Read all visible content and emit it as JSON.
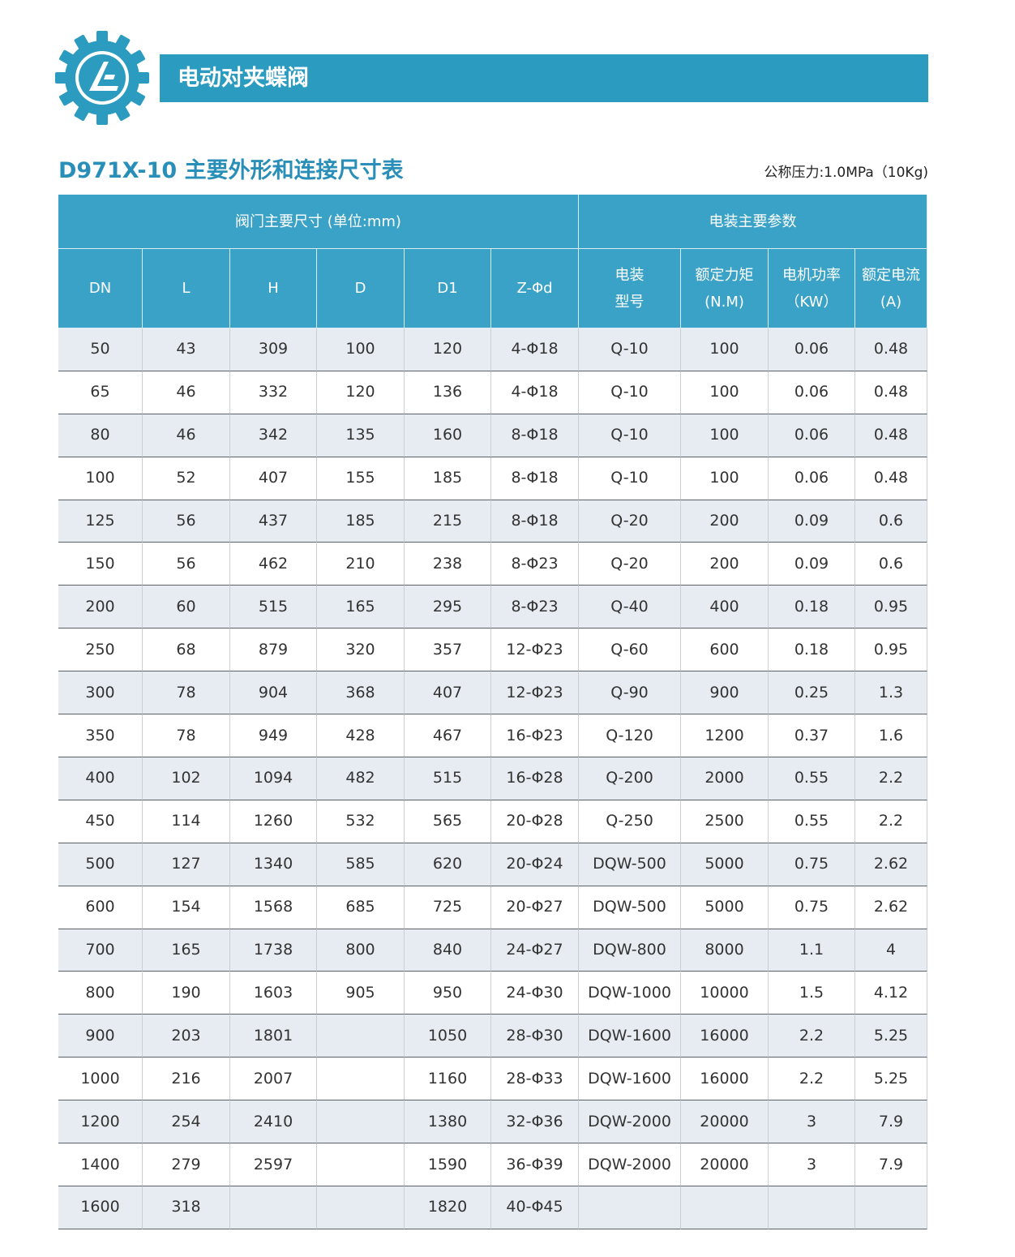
{
  "header": {
    "title": "电动对夹蝶阀"
  },
  "subheader": {
    "title": "D971X-10 主要外形和连接尺寸表",
    "note": "公称压力:1.0MPa（10Kg)"
  },
  "table": {
    "group_headers": [
      "阀门主要尺寸 (单位:mm)",
      "电装主要参数"
    ],
    "columns": [
      [
        "DN"
      ],
      [
        "L"
      ],
      [
        "H"
      ],
      [
        "D"
      ],
      [
        "D1"
      ],
      [
        "Z-Φd"
      ],
      [
        "电装",
        "型号"
      ],
      [
        "额定力矩",
        "(N.M)"
      ],
      [
        "电机功率",
        "（KW）"
      ],
      [
        "额定电流",
        "(A)"
      ]
    ],
    "rows": [
      [
        "50",
        "43",
        "309",
        "100",
        "120",
        "4-Φ18",
        "Q-10",
        "100",
        "0.06",
        "0.48"
      ],
      [
        "65",
        "46",
        "332",
        "120",
        "136",
        "4-Φ18",
        "Q-10",
        "100",
        "0.06",
        "0.48"
      ],
      [
        "80",
        "46",
        "342",
        "135",
        "160",
        "8-Φ18",
        "Q-10",
        "100",
        "0.06",
        "0.48"
      ],
      [
        "100",
        "52",
        "407",
        "155",
        "185",
        "8-Φ18",
        "Q-10",
        "100",
        "0.06",
        "0.48"
      ],
      [
        "125",
        "56",
        "437",
        "185",
        "215",
        "8-Φ18",
        "Q-20",
        "200",
        "0.09",
        "0.6"
      ],
      [
        "150",
        "56",
        "462",
        "210",
        "238",
        "8-Φ23",
        "Q-20",
        "200",
        "0.09",
        "0.6"
      ],
      [
        "200",
        "60",
        "515",
        "165",
        "295",
        "8-Φ23",
        "Q-40",
        "400",
        "0.18",
        "0.95"
      ],
      [
        "250",
        "68",
        "879",
        "320",
        "357",
        "12-Φ23",
        "Q-60",
        "600",
        "0.18",
        "0.95"
      ],
      [
        "300",
        "78",
        "904",
        "368",
        "407",
        "12-Φ23",
        "Q-90",
        "900",
        "0.25",
        "1.3"
      ],
      [
        "350",
        "78",
        "949",
        "428",
        "467",
        "16-Φ23",
        "Q-120",
        "1200",
        "0.37",
        "1.6"
      ],
      [
        "400",
        "102",
        "1094",
        "482",
        "515",
        "16-Φ28",
        "Q-200",
        "2000",
        "0.55",
        "2.2"
      ],
      [
        "450",
        "114",
        "1260",
        "532",
        "565",
        "20-Φ28",
        "Q-250",
        "2500",
        "0.55",
        "2.2"
      ],
      [
        "500",
        "127",
        "1340",
        "585",
        "620",
        "20-Φ24",
        "DQW-500",
        "5000",
        "0.75",
        "2.62"
      ],
      [
        "600",
        "154",
        "1568",
        "685",
        "725",
        "20-Φ27",
        "DQW-500",
        "5000",
        "0.75",
        "2.62"
      ],
      [
        "700",
        "165",
        "1738",
        "800",
        "840",
        "24-Φ27",
        "DQW-800",
        "8000",
        "1.1",
        "4"
      ],
      [
        "800",
        "190",
        "1603",
        "905",
        "950",
        "24-Φ30",
        "DQW-1000",
        "10000",
        "1.5",
        "4.12"
      ],
      [
        "900",
        "203",
        "1801",
        null,
        "1050",
        "28-Φ30",
        "DQW-1600",
        "16000",
        "2.2",
        "5.25"
      ],
      [
        "1000",
        "216",
        "2007",
        null,
        "1160",
        "28-Φ33",
        "DQW-1600",
        "16000",
        "2.2",
        "5.25"
      ],
      [
        "1200",
        "254",
        "2410",
        null,
        "1380",
        "32-Φ36",
        "DQW-2000",
        "20000",
        "3",
        "7.9"
      ],
      [
        "1400",
        "279",
        "2597",
        null,
        "1590",
        "36-Φ39",
        "DQW-2000",
        "20000",
        "3",
        "7.9"
      ],
      [
        "1600",
        "318",
        null,
        null,
        "1820",
        "40-Φ45",
        null,
        null,
        null,
        null
      ]
    ]
  }
}
